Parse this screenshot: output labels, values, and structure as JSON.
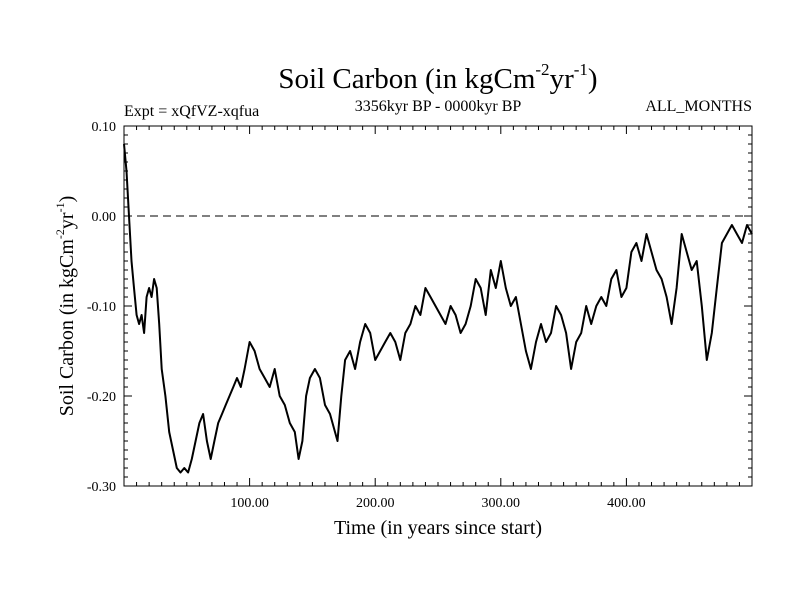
{
  "chart_data": {
    "type": "line",
    "title": "Soil Carbon (in kgCm-2yr-1)",
    "title_main": "Soil Carbon (in kgCm",
    "title_exp1": "-2",
    "title_mid": "yr",
    "title_exp2": "-1",
    "title_end": ")",
    "subtitle_left": "Expt = xQfVZ-xqfua",
    "subtitle_center": "3356kyr BP - 0000kyr BP",
    "subtitle_right": "ALL_MONTHS",
    "xlabel": "Time (in years since start)",
    "ylabel": "Soil Carbon (in kgCm-2yr-1)",
    "ylabel_main": "Soil Carbon (in kgCm",
    "ylabel_exp1": "-2",
    "ylabel_mid": "yr",
    "ylabel_exp2": "-1",
    "ylabel_end": ")",
    "xlim": [
      0,
      500
    ],
    "ylim": [
      -0.3,
      0.1
    ],
    "xticks": [
      100,
      200,
      300,
      400
    ],
    "xtick_labels": [
      "100.00",
      "200.00",
      "300.00",
      "400.00"
    ],
    "yticks": [
      0.1,
      0.0,
      -0.1,
      -0.2,
      -0.3
    ],
    "ytick_labels": [
      "0.10",
      "0.00",
      "-0.10",
      "-0.20",
      "-0.30"
    ],
    "reference_line_y": 0.0,
    "series": [
      {
        "name": "Soil Carbon",
        "x": [
          0,
          2,
          4,
          6,
          8,
          10,
          12,
          14,
          16,
          18,
          20,
          22,
          24,
          26,
          28,
          30,
          33,
          36,
          39,
          42,
          45,
          48,
          51,
          54,
          57,
          60,
          63,
          66,
          69,
          72,
          75,
          78,
          81,
          84,
          87,
          90,
          93,
          96,
          100,
          104,
          108,
          112,
          116,
          120,
          124,
          128,
          132,
          136,
          139,
          142,
          145,
          148,
          152,
          156,
          160,
          164,
          168,
          170,
          173,
          176,
          180,
          184,
          188,
          192,
          196,
          200,
          204,
          208,
          212,
          216,
          220,
          224,
          228,
          232,
          236,
          240,
          244,
          248,
          252,
          256,
          260,
          264,
          268,
          272,
          276,
          280,
          284,
          288,
          292,
          296,
          300,
          304,
          308,
          312,
          316,
          320,
          324,
          328,
          332,
          336,
          340,
          344,
          348,
          352,
          356,
          360,
          364,
          368,
          372,
          376,
          380,
          384,
          388,
          392,
          396,
          400,
          404,
          408,
          412,
          416,
          420,
          424,
          428,
          432,
          436,
          440,
          444,
          448,
          452,
          456,
          460,
          464,
          468,
          472,
          476,
          480,
          484,
          488,
          492,
          496,
          500
        ],
        "values": [
          0.08,
          0.05,
          0.0,
          -0.05,
          -0.08,
          -0.11,
          -0.12,
          -0.11,
          -0.13,
          -0.09,
          -0.08,
          -0.09,
          -0.07,
          -0.08,
          -0.12,
          -0.17,
          -0.2,
          -0.24,
          -0.26,
          -0.28,
          -0.285,
          -0.28,
          -0.285,
          -0.27,
          -0.25,
          -0.23,
          -0.22,
          -0.25,
          -0.27,
          -0.25,
          -0.23,
          -0.22,
          -0.21,
          -0.2,
          -0.19,
          -0.18,
          -0.19,
          -0.17,
          -0.14,
          -0.15,
          -0.17,
          -0.18,
          -0.19,
          -0.17,
          -0.2,
          -0.21,
          -0.23,
          -0.24,
          -0.27,
          -0.25,
          -0.2,
          -0.18,
          -0.17,
          -0.18,
          -0.21,
          -0.22,
          -0.24,
          -0.25,
          -0.2,
          -0.16,
          -0.15,
          -0.17,
          -0.14,
          -0.12,
          -0.13,
          -0.16,
          -0.15,
          -0.14,
          -0.13,
          -0.14,
          -0.16,
          -0.13,
          -0.12,
          -0.1,
          -0.11,
          -0.08,
          -0.09,
          -0.1,
          -0.11,
          -0.12,
          -0.1,
          -0.11,
          -0.13,
          -0.12,
          -0.1,
          -0.07,
          -0.08,
          -0.11,
          -0.06,
          -0.08,
          -0.05,
          -0.08,
          -0.1,
          -0.09,
          -0.12,
          -0.15,
          -0.17,
          -0.14,
          -0.12,
          -0.14,
          -0.13,
          -0.1,
          -0.11,
          -0.13,
          -0.17,
          -0.14,
          -0.13,
          -0.1,
          -0.12,
          -0.1,
          -0.09,
          -0.1,
          -0.07,
          -0.06,
          -0.09,
          -0.08,
          -0.04,
          -0.03,
          -0.05,
          -0.02,
          -0.04,
          -0.06,
          -0.07,
          -0.09,
          -0.12,
          -0.08,
          -0.02,
          -0.04,
          -0.06,
          -0.05,
          -0.1,
          -0.16,
          -0.13,
          -0.08,
          -0.03,
          -0.02,
          -0.01,
          -0.02,
          -0.03,
          -0.01,
          -0.02
        ]
      }
    ]
  }
}
